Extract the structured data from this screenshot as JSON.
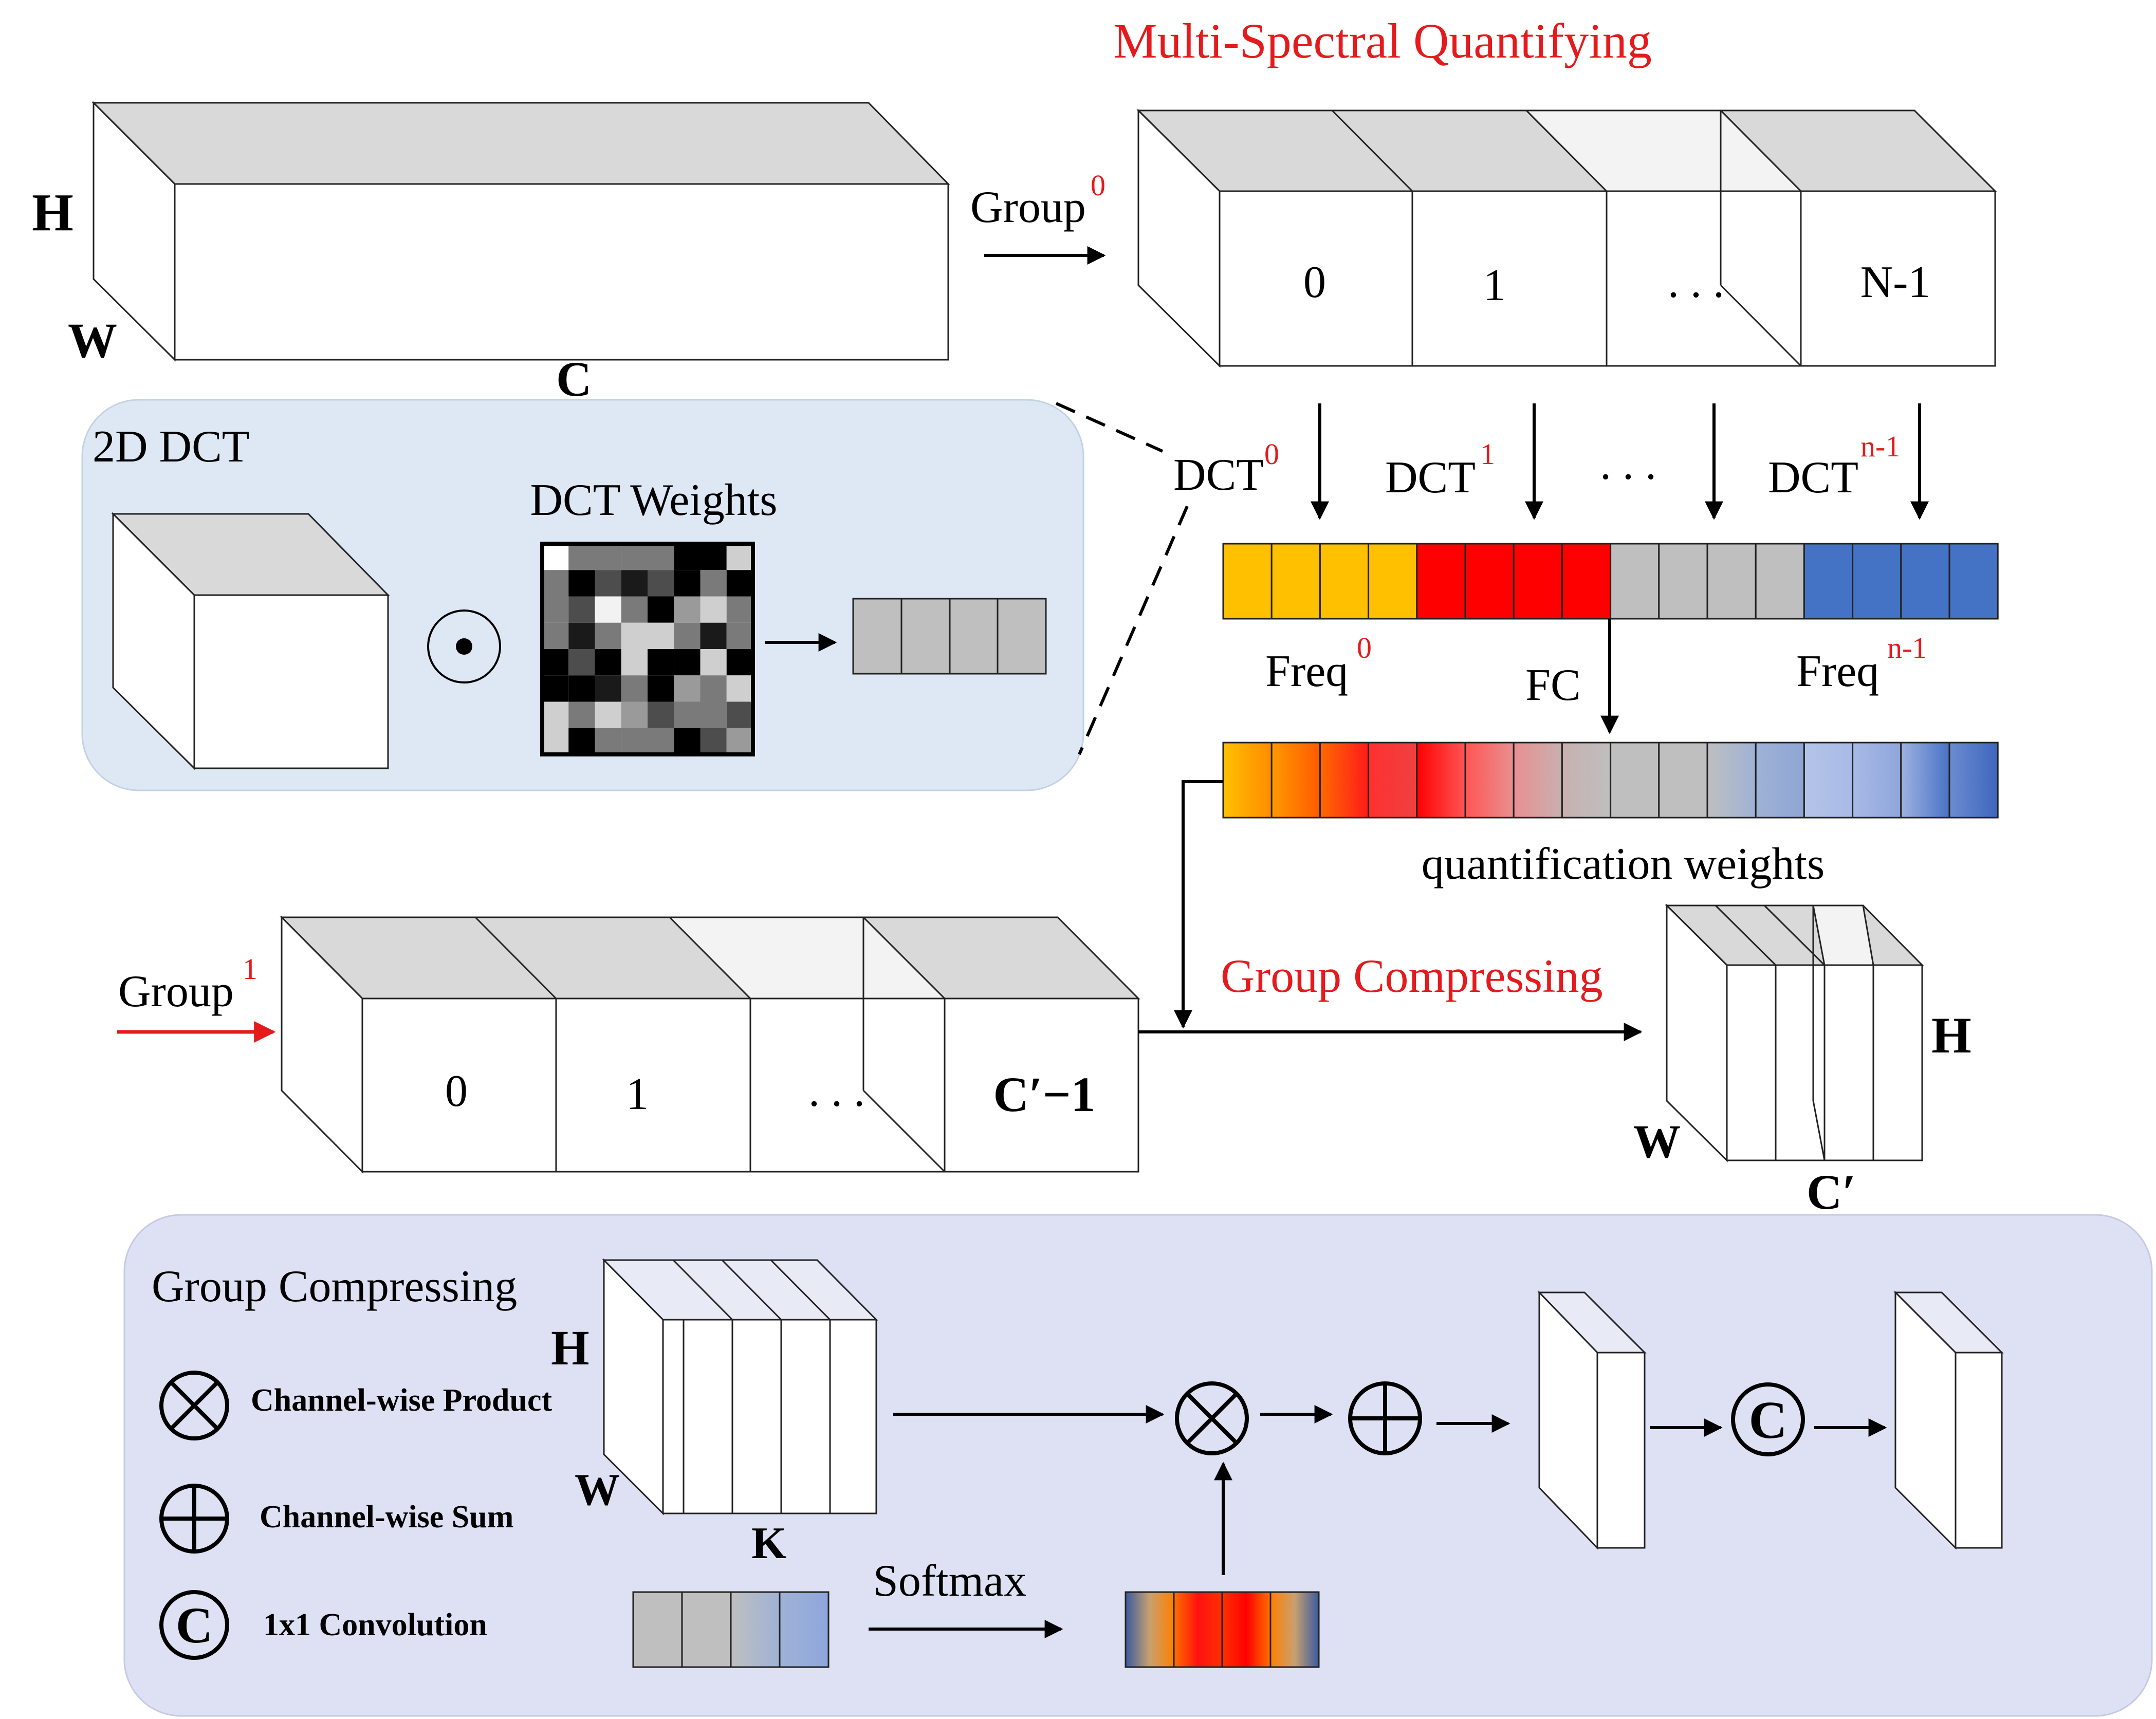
{
  "titles": {
    "multi_spectral": "Multi-Spectral Quantifying",
    "group_compressing_red": "Group Compressing",
    "dct_panel": "2D DCT",
    "dct_weights": "DCT Weights",
    "gc_panel": "Group Compressing"
  },
  "top_tensor": {
    "h": "H",
    "w": "W",
    "c": "C"
  },
  "group0": {
    "label": "Group",
    "sup": "0",
    "cells": [
      "0",
      "1",
      ". . .",
      "N-1"
    ]
  },
  "dct_labels": [
    {
      "label": "DCT",
      "sup": "0"
    },
    {
      "label": "DCT",
      "sup": "1"
    },
    {
      "label": ". . .",
      "sup": ""
    },
    {
      "label": "DCT",
      "sup": "n-1"
    }
  ],
  "freq": {
    "first": "Freq",
    "first_sup": "0",
    "last": "Freq",
    "last_sup": "n-1",
    "fc": "FC"
  },
  "quant_label": "quantification weights",
  "group1": {
    "label": "Group",
    "sup": "1",
    "cells": [
      "0",
      "1",
      ". . .",
      "C′−1"
    ]
  },
  "out_tensor": {
    "h": "H",
    "w": "W",
    "c": "C′"
  },
  "gc": {
    "h": "H",
    "w": "W",
    "k": "K",
    "softmax": "Softmax"
  },
  "legend": [
    {
      "symbol": "⊗",
      "text": "Channel-wise Product"
    },
    {
      "symbol": "⊕",
      "text": "Channel-wise Sum"
    },
    {
      "symbol": "C",
      "text": "1x1 Convolution"
    }
  ],
  "symbols": {
    "product": "⊗",
    "sum": "⊕",
    "conv": "C"
  },
  "colors": {
    "yellow": "#ffc000",
    "red": "#ff0000",
    "gray": "#bfbfbf",
    "blue": "#4472c4",
    "panel_dct": "#dde8f4",
    "panel_gc": "#dde1f3",
    "accent_red": "#e41a1c"
  }
}
